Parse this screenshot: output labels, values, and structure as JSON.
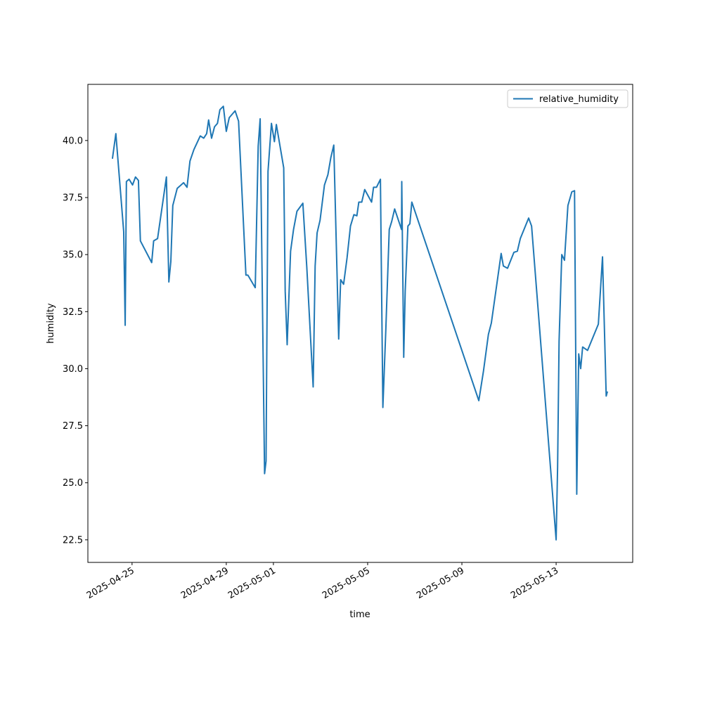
{
  "chart_data": {
    "type": "line",
    "xlabel": "time",
    "ylabel": "humidity",
    "x": [
      "2025-04-24 04:00",
      "2025-04-24 07:30",
      "2025-04-24 15:30",
      "2025-04-24 17:00",
      "2025-04-24 18:15",
      "2025-04-24 21:00",
      "2025-04-25 00:30",
      "2025-04-25 03:30",
      "2025-04-25 06:30",
      "2025-04-25 08:30",
      "2025-04-25 20:00",
      "2025-04-25 22:00",
      "2025-04-26 02:00",
      "2025-04-26 11:00",
      "2025-04-26 13:30",
      "2025-04-26 15:30",
      "2025-04-26 17:30",
      "2025-04-26 22:00",
      "2025-04-27 04:30",
      "2025-04-27 08:00",
      "2025-04-27 11:00",
      "2025-04-27 15:00",
      "2025-04-27 21:30",
      "2025-04-28 01:00",
      "2025-04-28 04:00",
      "2025-04-28 06:00",
      "2025-04-28 09:00",
      "2025-04-28 12:00",
      "2025-04-28 15:00",
      "2025-04-28 17:30",
      "2025-04-28 21:00",
      "2025-04-29 00:00",
      "2025-04-29 03:00",
      "2025-04-29 09:00",
      "2025-04-29 12:30",
      "2025-04-29 20:00",
      "2025-04-29 22:00",
      "2025-04-30 05:30",
      "2025-04-30 08:30",
      "2025-04-30 10:30",
      "2025-04-30 15:00",
      "2025-04-30 16:30",
      "2025-04-30 18:30",
      "2025-04-30 22:00",
      "2025-05-01 01:00",
      "2025-05-01 03:00",
      "2025-05-01 10:30",
      "2025-05-01 12:00",
      "2025-05-01 14:00",
      "2025-05-01 17:30",
      "2025-05-01 20:30",
      "2025-05-02 00:00",
      "2025-05-02 06:00",
      "2025-05-02 10:00",
      "2025-05-02 16:30",
      "2025-05-02 18:30",
      "2025-05-02 20:30",
      "2025-05-02 23:30",
      "2025-05-03 04:00",
      "2025-05-03 07:30",
      "2025-05-03 10:30",
      "2025-05-03 13:30",
      "2025-05-03 18:30",
      "2025-05-03 20:30",
      "2025-05-03 23:30",
      "2025-05-04 03:00",
      "2025-05-04 06:30",
      "2025-05-04 10:00",
      "2025-05-04 13:00",
      "2025-05-04 15:00",
      "2025-05-04 18:00",
      "2025-05-04 21:00",
      "2025-05-05 04:00",
      "2025-05-05 06:00",
      "2025-05-05 09:00",
      "2025-05-05 13:00",
      "2025-05-05 15:30",
      "2025-05-05 18:30",
      "2025-05-05 22:00",
      "2025-05-06 00:30",
      "2025-05-06 03:30",
      "2025-05-06 10:30",
      "2025-05-06 10:45",
      "2025-05-06 12:45",
      "2025-05-06 14:15",
      "2025-05-06 17:00",
      "2025-05-06 19:00",
      "2025-05-06 21:00",
      "2025-05-09 17:15",
      "2025-05-09 22:00",
      "2025-05-10 03:00",
      "2025-05-10 06:00",
      "2025-05-10 16:00",
      "2025-05-10 18:15",
      "2025-05-10 22:30",
      "2025-05-11 05:00",
      "2025-05-11 08:30",
      "2025-05-11 11:30",
      "2025-05-11 20:00",
      "2025-05-11 23:00",
      "2025-05-13 00:00",
      "2025-05-13 01:30",
      "2025-05-13 03:00",
      "2025-05-13 05:45",
      "2025-05-13 08:30",
      "2025-05-13 12:00",
      "2025-05-13 16:00",
      "2025-05-13 18:45",
      "2025-05-13 21:00",
      "2025-05-13 23:00",
      "2025-05-14 01:00",
      "2025-05-14 03:00",
      "2025-05-14 08:00",
      "2025-05-14 19:00",
      "2025-05-14 23:15",
      "2025-05-15 03:00",
      "2025-05-15 04:15"
    ],
    "series": [
      {
        "name": "relative_humidity",
        "color": "#1f77b4",
        "values": [
          39.2,
          40.3,
          36.0,
          31.9,
          38.2,
          38.3,
          38.05,
          38.4,
          38.25,
          35.6,
          34.65,
          35.6,
          35.7,
          38.4,
          33.8,
          34.7,
          37.15,
          37.9,
          38.15,
          37.95,
          39.1,
          39.6,
          40.2,
          40.1,
          40.3,
          40.9,
          40.1,
          40.6,
          40.75,
          41.35,
          41.5,
          40.4,
          41.0,
          41.3,
          40.85,
          34.1,
          34.1,
          33.55,
          39.75,
          40.95,
          25.4,
          25.95,
          38.65,
          40.75,
          39.95,
          40.7,
          38.8,
          33.4,
          31.05,
          35.15,
          36.1,
          36.9,
          37.25,
          34.45,
          29.2,
          34.5,
          35.95,
          36.5,
          38.05,
          38.5,
          39.25,
          39.8,
          31.3,
          33.9,
          33.7,
          34.85,
          36.25,
          36.75,
          36.7,
          37.3,
          37.3,
          37.85,
          37.3,
          37.95,
          37.95,
          38.3,
          28.3,
          31.7,
          36.1,
          36.45,
          37.0,
          36.1,
          38.2,
          30.5,
          33.4,
          36.25,
          36.35,
          37.3,
          28.6,
          29.9,
          31.5,
          32.0,
          35.05,
          34.5,
          34.4,
          35.1,
          35.15,
          35.7,
          36.6,
          36.25,
          22.5,
          25.7,
          31.2,
          35.0,
          34.75,
          37.15,
          37.75,
          37.8,
          24.5,
          30.65,
          30.0,
          30.95,
          30.8,
          31.95,
          34.9,
          28.8,
          29.0
        ]
      }
    ],
    "xlim": [
      "2025-04-23 03:00",
      "2025-05-16 06:00"
    ],
    "xticks": [
      "2025-04-25",
      "2025-04-29",
      "2025-05-01",
      "2025-05-05",
      "2025-05-09",
      "2025-05-13"
    ],
    "ylim": [
      21.51,
      42.46
    ],
    "yticks": [
      {
        "value": 22.5,
        "label": "22.5"
      },
      {
        "value": 25,
        "label": "25.0"
      },
      {
        "value": 27.5,
        "label": "27.5"
      },
      {
        "value": 30,
        "label": "30.0"
      },
      {
        "value": 32.5,
        "label": "32.5"
      },
      {
        "value": 35,
        "label": "35.0"
      },
      {
        "value": 37.5,
        "label": "37.5"
      },
      {
        "value": 40,
        "label": "40.0"
      }
    ],
    "legend": "upper right",
    "grid": false
  }
}
